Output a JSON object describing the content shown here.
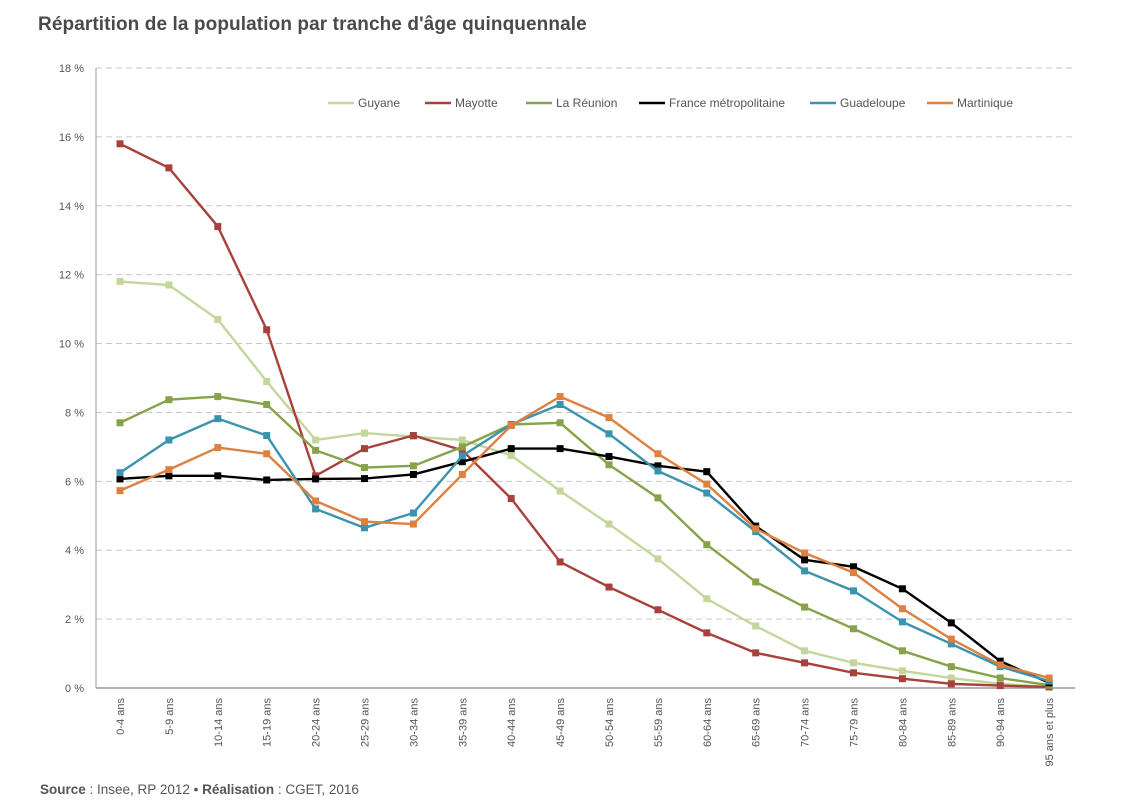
{
  "chart_data": {
    "type": "line",
    "title": "Répartition de la population par tranche d'âge quinquennale",
    "xlabel": "",
    "ylabel": "",
    "ylim": [
      0,
      18
    ],
    "yticks": [
      0,
      2,
      4,
      6,
      8,
      10,
      12,
      14,
      16,
      18
    ],
    "ytick_labels": [
      "0 %",
      "2 %",
      "4 %",
      "6 %",
      "8 %",
      "10 %",
      "12 %",
      "14 %",
      "16 %",
      "18 %"
    ],
    "grid": "horizontal dashed",
    "legend_position": "top-right",
    "categories": [
      "0-4 ans",
      "5-9 ans",
      "10-14 ans",
      "15-19 ans",
      "20-24 ans",
      "25-29 ans",
      "30-34 ans",
      "35-39 ans",
      "40-44 ans",
      "45-49 ans",
      "50-54 ans",
      "55-59 ans",
      "60-64 ans",
      "65-69 ans",
      "70-74 ans",
      "75-79 ans",
      "80-84 ans",
      "85-89 ans",
      "90-94 ans",
      "95 ans et plus"
    ],
    "series": [
      {
        "name": "Guyane",
        "color": "#c3d69b",
        "values": [
          11.8,
          11.7,
          10.7,
          8.9,
          7.2,
          7.4,
          7.3,
          7.2,
          6.75,
          5.72,
          4.76,
          3.75,
          2.59,
          1.8,
          1.08,
          0.73,
          0.5,
          0.29,
          0.12,
          0.03
        ]
      },
      {
        "name": "Mayotte",
        "color": "#a8413b",
        "values": [
          15.8,
          15.1,
          13.4,
          10.4,
          6.16,
          6.95,
          7.33,
          6.9,
          5.5,
          3.66,
          2.93,
          2.27,
          1.6,
          1.02,
          0.73,
          0.44,
          0.27,
          0.12,
          0.07,
          0.03
        ]
      },
      {
        "name": "La Réunion",
        "color": "#86a34a",
        "values": [
          7.7,
          8.37,
          8.46,
          8.23,
          6.9,
          6.4,
          6.45,
          7.0,
          7.65,
          7.7,
          6.48,
          5.52,
          4.16,
          3.08,
          2.35,
          1.72,
          1.08,
          0.62,
          0.29,
          0.08
        ]
      },
      {
        "name": "France métropolitaine",
        "color": "#000000",
        "values": [
          6.07,
          6.16,
          6.16,
          6.04,
          6.07,
          6.08,
          6.2,
          6.57,
          6.95,
          6.95,
          6.72,
          6.45,
          6.28,
          4.7,
          3.72,
          3.52,
          2.88,
          1.89,
          0.78,
          0.15
        ]
      },
      {
        "name": "Guadeloupe",
        "color": "#3b93ad",
        "values": [
          6.25,
          7.2,
          7.82,
          7.33,
          5.2,
          4.65,
          5.08,
          6.74,
          7.65,
          8.23,
          7.38,
          6.3,
          5.66,
          4.54,
          3.4,
          2.82,
          1.92,
          1.28,
          0.62,
          0.2
        ]
      },
      {
        "name": "Martinique",
        "color": "#dd8040",
        "values": [
          5.73,
          6.34,
          6.98,
          6.8,
          5.43,
          4.83,
          4.76,
          6.2,
          7.62,
          8.46,
          7.85,
          6.8,
          5.92,
          4.62,
          3.92,
          3.35,
          2.3,
          1.42,
          0.67,
          0.29
        ]
      }
    ]
  },
  "page": {
    "title": "Répartition de la population par tranche d'âge quinquennale",
    "footer": {
      "source_label": "Source",
      "source_text": " : Insee, RP 2012 • ",
      "realisation_label": "Réalisation",
      "realisation_text": " : CGET, 2016"
    }
  },
  "colors": {
    "grid": "#c8c8c8",
    "axis": "#999999",
    "text": "#555555"
  }
}
